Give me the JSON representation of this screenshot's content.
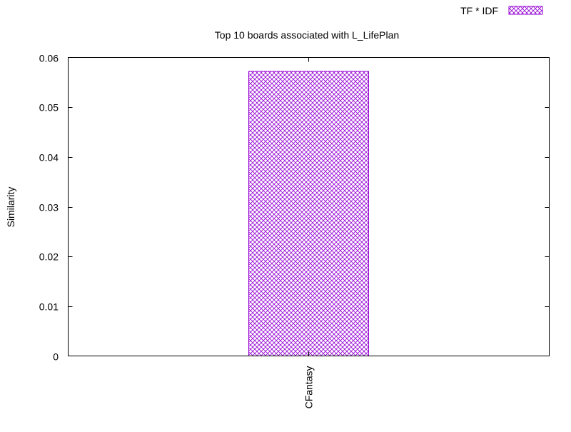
{
  "chart_data": {
    "type": "bar",
    "title": "Top 10 boards associated with L_LifePlan",
    "xlabel": "",
    "ylabel": "Similarity",
    "categories": [
      "CFantasy"
    ],
    "series": [
      {
        "name": "TF * IDF",
        "values": [
          0.0572
        ],
        "color": "#9400d3",
        "pattern": "crosshatch"
      }
    ],
    "ylim": [
      0,
      0.06
    ],
    "yticks": [
      "0",
      "0.01",
      "0.02",
      "0.03",
      "0.04",
      "0.05",
      "0.06"
    ],
    "grid": false,
    "legend_position": "top-right"
  }
}
